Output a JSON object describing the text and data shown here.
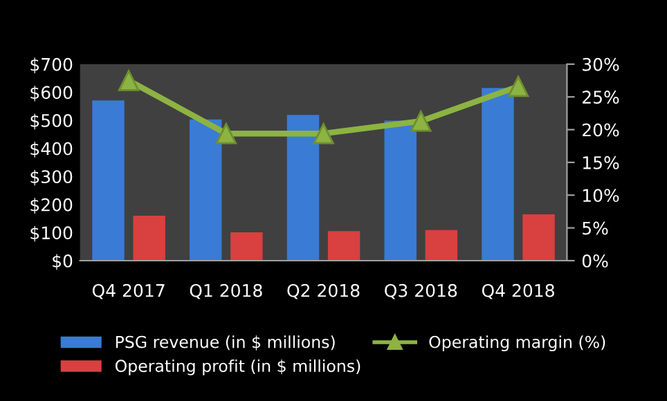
{
  "chart_data": {
    "type": "bar",
    "categories": [
      "Q4 2017",
      "Q1 2018",
      "Q2 2018",
      "Q3 2018",
      "Q4 2018"
    ],
    "series": [
      {
        "name": "PSG revenue (in $ millions)",
        "color": "#3a7bd5",
        "values": [
          571,
          503,
          519,
          499,
          615
        ]
      },
      {
        "name": "Operating profit (in $ millions)",
        "color": "#d94040",
        "values": [
          160,
          101,
          105,
          109,
          165
        ]
      },
      {
        "name": "Operating margin (%)",
        "type": "line",
        "axis": "y2",
        "color": "#8db342",
        "marker": "triangle",
        "values": [
          27.5,
          19.4,
          19.4,
          21.3,
          26.6
        ]
      }
    ],
    "ylim": [
      0,
      700
    ],
    "yticks": [
      {
        "value": 0,
        "label": "$0"
      },
      {
        "value": 100,
        "label": "$100"
      },
      {
        "value": 200,
        "label": "$200"
      },
      {
        "value": 300,
        "label": "$300"
      },
      {
        "value": 400,
        "label": "$400"
      },
      {
        "value": 500,
        "label": "$500"
      },
      {
        "value": 600,
        "label": "$600"
      },
      {
        "value": 700,
        "label": "$700"
      }
    ],
    "y2lim": [
      0,
      30
    ],
    "y2ticks": [
      {
        "value": 0,
        "label": "0%"
      },
      {
        "value": 5,
        "label": "5%"
      },
      {
        "value": 10,
        "label": "10%"
      },
      {
        "value": 15,
        "label": "15%"
      },
      {
        "value": 20,
        "label": "20%"
      },
      {
        "value": 25,
        "label": "25%"
      },
      {
        "value": 30,
        "label": "30%"
      }
    ],
    "grid": false,
    "legend": "bottom"
  }
}
